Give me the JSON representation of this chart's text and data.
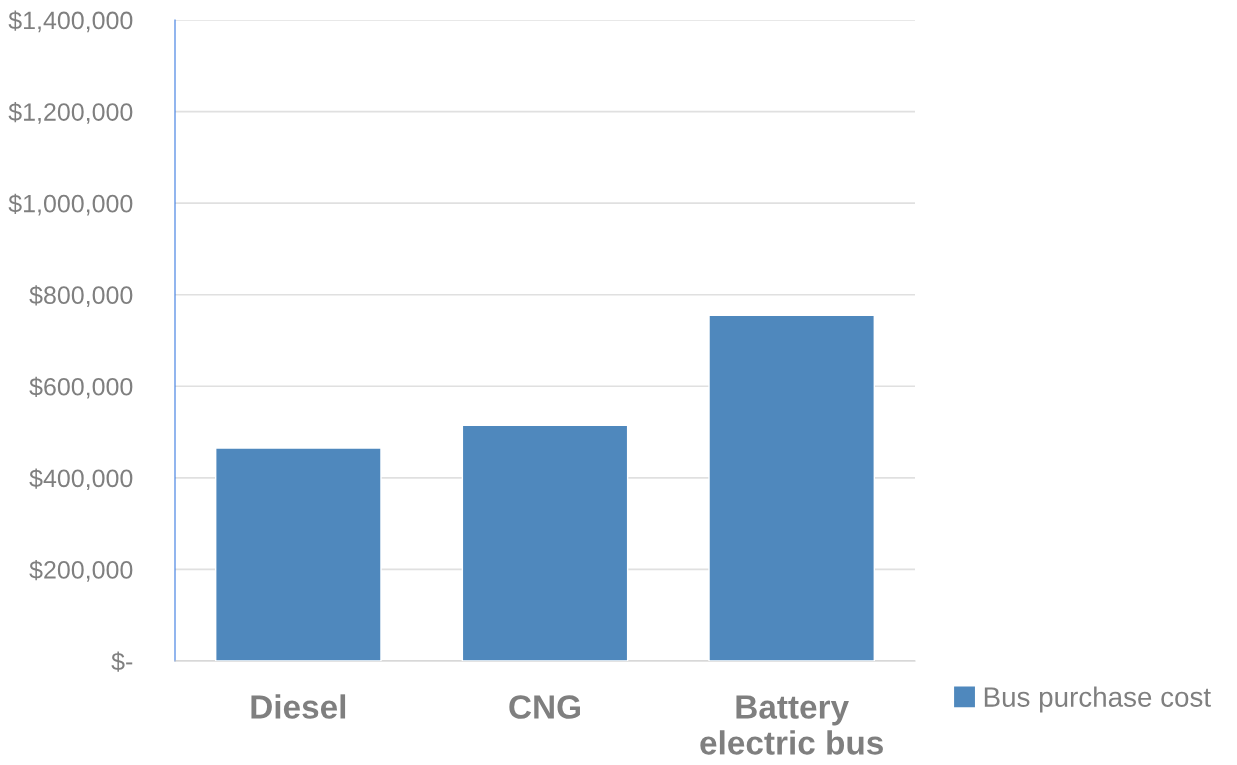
{
  "chart_data": {
    "type": "bar",
    "categories": [
      "Diesel",
      "CNG",
      "Battery\nelectric bus"
    ],
    "series": [
      {
        "name": "Bus purchase cost",
        "color": "#4f88bd",
        "values": [
          465000,
          515000,
          755000
        ]
      }
    ],
    "ylim": [
      0,
      1400000
    ],
    "yticks": [
      {
        "value": 0,
        "label": "$-"
      },
      {
        "value": 200000,
        "label": "$200,000"
      },
      {
        "value": 400000,
        "label": "$400,000"
      },
      {
        "value": 600000,
        "label": "$600,000"
      },
      {
        "value": 800000,
        "label": "$800,000"
      },
      {
        "value": 1000000,
        "label": "$1,000,000"
      },
      {
        "value": 1200000,
        "label": "$1,200,000"
      },
      {
        "value": 1400000,
        "label": "$1,400,000"
      }
    ],
    "grid": "y",
    "legend": "right"
  }
}
